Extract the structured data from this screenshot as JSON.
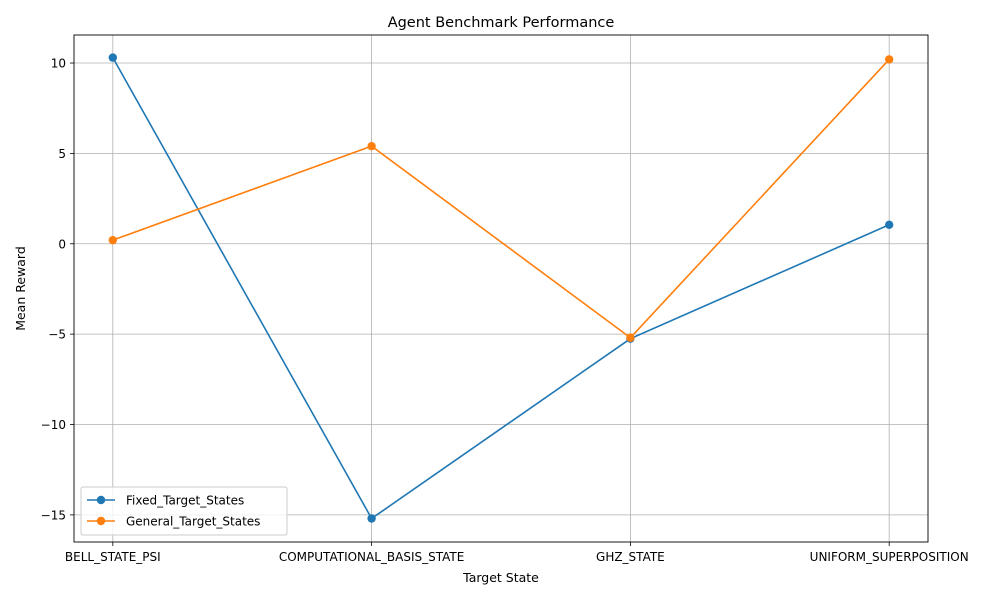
{
  "chart_data": {
    "type": "line",
    "title": "Agent Benchmark Performance",
    "xlabel": "Target State",
    "ylabel": "Mean Reward",
    "categories": [
      "BELL_STATE_PSI",
      "COMPUTATIONAL_BASIS_STATE",
      "GHZ_STATE",
      "UNIFORM_SUPERPOSITION"
    ],
    "series": [
      {
        "name": "Fixed_Target_States",
        "color": "#1f77b4",
        "values": [
          10.3,
          -15.2,
          -5.25,
          1.05
        ]
      },
      {
        "name": "General_Target_States",
        "color": "#ff7f0e",
        "values": [
          0.2,
          5.4,
          -5.2,
          10.2
        ]
      }
    ],
    "ylim": [
      -16.5,
      11.55
    ],
    "yticks": [
      -15,
      -10,
      -5,
      0,
      5,
      10
    ],
    "ytick_labels": [
      "−15",
      "−10",
      "−5",
      "0",
      "5",
      "10"
    ],
    "grid": true,
    "legend_position": "lower-left",
    "marker": "circle"
  }
}
